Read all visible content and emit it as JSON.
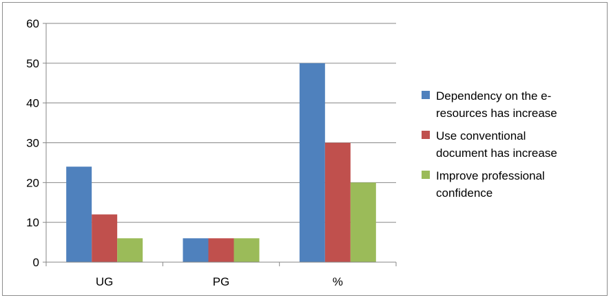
{
  "chart_data": {
    "type": "bar",
    "categories": [
      "UG",
      "PG",
      "%"
    ],
    "series": [
      {
        "name": "Dependency on the e-resources has increase",
        "values": [
          24,
          6,
          50
        ],
        "color": "#4f81bd",
        "legend_lines": [
          "Dependency on the e-",
          "resources has increase"
        ]
      },
      {
        "name": "Use conventional document has increase",
        "values": [
          12,
          6,
          30
        ],
        "color": "#c0504d",
        "legend_lines": [
          "Use conventional",
          "document has increase"
        ]
      },
      {
        "name": "Improve professional confidence",
        "values": [
          6,
          6,
          20
        ],
        "color": "#9bbb59",
        "legend_lines": [
          "Improve professional",
          "confidence"
        ]
      }
    ],
    "ylim": [
      0,
      60
    ],
    "yticks": [
      "0",
      "10",
      "20",
      "30",
      "40",
      "50",
      "60"
    ],
    "grid": true,
    "legend_position": "right",
    "title": "",
    "xlabel": "",
    "ylabel": ""
  }
}
